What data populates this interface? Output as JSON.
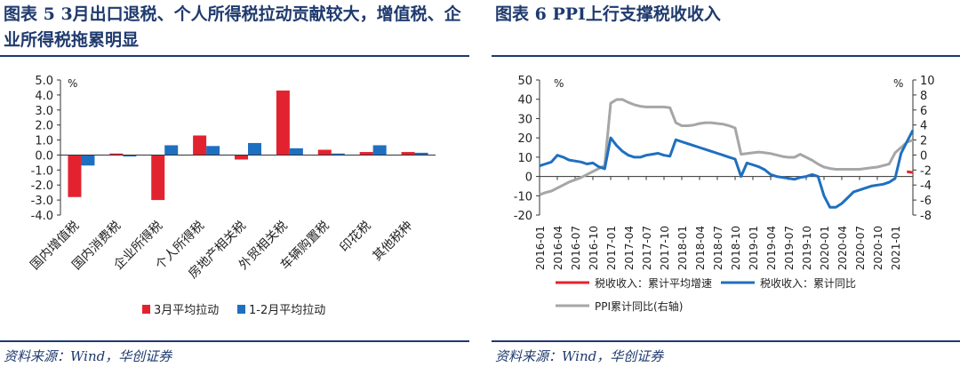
{
  "left": {
    "title": "图表 5  3月出口退税、个人所得税拉动贡献较大，增值税、企业所得税拖累明显",
    "source": "资料来源：Wind，华创证券"
  },
  "right": {
    "title": "图表 6  PPI上行支撑税收收入",
    "source": "资料来源：Wind，华创证券"
  },
  "chart_data": [
    {
      "type": "bar",
      "title": "",
      "unit_label": "%",
      "ylim": [
        -4.0,
        5.0
      ],
      "yticks": [
        "5.0",
        "4.0",
        "3.0",
        "2.0",
        "1.0",
        "0.0",
        "-1.0",
        "-2.0",
        "-3.0",
        "-4.0"
      ],
      "categories": [
        "国内增值税",
        "国内消费税",
        "企业所得税",
        "个人所得税",
        "房地产相关税",
        "外贸相关税",
        "车辆购置税",
        "印花税",
        "其他税种"
      ],
      "series": [
        {
          "name": "3月平均拉动",
          "color": "#e2232f",
          "values": [
            -2.8,
            0.1,
            -3.0,
            1.3,
            -0.3,
            4.3,
            0.35,
            0.2,
            0.2
          ]
        },
        {
          "name": "1-2月平均拉动",
          "color": "#1f6fc0",
          "values": [
            -0.7,
            -0.1,
            0.65,
            0.6,
            0.8,
            0.45,
            0.1,
            0.65,
            0.15
          ]
        }
      ]
    },
    {
      "type": "line",
      "unit_left": "%",
      "unit_right": "%",
      "ylim_left": [
        -20,
        50
      ],
      "ylim_right": [
        -8,
        10
      ],
      "yticks_left": [
        "50",
        "40",
        "30",
        "20",
        "10",
        "0",
        "-10",
        "-20"
      ],
      "yticks_right": [
        "10",
        "8",
        "6",
        "4",
        "2",
        "0",
        "-2",
        "-4",
        "-6",
        "-8"
      ],
      "x_labels": [
        "2016-01",
        "2016-04",
        "2016-07",
        "2016-10",
        "2017-01",
        "2017-04",
        "2017-07",
        "2017-10",
        "2018-01",
        "2018-04",
        "2018-07",
        "2018-10",
        "2019-01",
        "2019-04",
        "2019-07",
        "2019-10",
        "2020-01",
        "2020-04",
        "2020-07",
        "2020-10",
        "2021-01"
      ],
      "series": [
        {
          "name": "税收收入：累计平均增速",
          "axis": "left",
          "color": "#e2232f",
          "points": [
            [
              62,
              2.5
            ],
            [
              63,
              2.0
            ]
          ]
        },
        {
          "name": "税收收入：累计同比",
          "axis": "left",
          "color": "#1f6fc0",
          "points": [
            [
              0,
              5.5
            ],
            [
              1,
              6.5
            ],
            [
              2,
              7.5
            ],
            [
              3,
              11
            ],
            [
              4,
              10
            ],
            [
              5,
              8.5
            ],
            [
              6,
              8
            ],
            [
              7,
              7.5
            ],
            [
              8,
              6.5
            ],
            [
              9,
              7
            ],
            [
              10,
              5
            ],
            [
              11,
              4
            ],
            [
              12,
              20
            ],
            [
              13,
              16
            ],
            [
              14,
              13
            ],
            [
              15,
              11
            ],
            [
              16,
              10
            ],
            [
              17,
              10
            ],
            [
              18,
              11
            ],
            [
              19,
              11.5
            ],
            [
              20,
              12
            ],
            [
              21,
              11
            ],
            [
              22,
              10.5
            ],
            [
              23,
              19
            ],
            [
              24,
              18
            ],
            [
              25,
              17
            ],
            [
              26,
              16
            ],
            [
              27,
              15
            ],
            [
              28,
              14
            ],
            [
              29,
              13
            ],
            [
              30,
              12
            ],
            [
              31,
              11
            ],
            [
              32,
              10
            ],
            [
              33,
              9
            ],
            [
              34,
              0
            ],
            [
              35,
              7
            ],
            [
              36,
              6
            ],
            [
              37,
              5
            ],
            [
              38,
              3.5
            ],
            [
              39,
              1
            ],
            [
              40,
              0
            ],
            [
              41,
              -0.5
            ],
            [
              42,
              -1
            ],
            [
              43,
              -1.5
            ],
            [
              44,
              -0.5
            ],
            [
              45,
              0
            ],
            [
              46,
              1
            ],
            [
              47,
              0
            ],
            [
              48,
              -10
            ],
            [
              49,
              -16
            ],
            [
              50,
              -16
            ],
            [
              51,
              -14
            ],
            [
              52,
              -11
            ],
            [
              53,
              -8
            ],
            [
              54,
              -7
            ],
            [
              55,
              -6
            ],
            [
              56,
              -5
            ],
            [
              57,
              -4.5
            ],
            [
              58,
              -4
            ],
            [
              59,
              -3
            ],
            [
              60,
              -1
            ],
            [
              61,
              12
            ],
            [
              62,
              18
            ],
            [
              63,
              24
            ]
          ]
        },
        {
          "name": "PPI累计同比(右轴)",
          "axis": "right",
          "color": "#a6a6a6",
          "points": [
            [
              0,
              -5.3
            ],
            [
              1,
              -5
            ],
            [
              2,
              -4.8
            ],
            [
              3,
              -4.4
            ],
            [
              4,
              -4
            ],
            [
              5,
              -3.6
            ],
            [
              6,
              -3.3
            ],
            [
              7,
              -3
            ],
            [
              8,
              -2.6
            ],
            [
              9,
              -2.2
            ],
            [
              10,
              -1.8
            ],
            [
              11,
              -1.4
            ],
            [
              12,
              6.9
            ],
            [
              13,
              7.4
            ],
            [
              14,
              7.4
            ],
            [
              15,
              7.0
            ],
            [
              16,
              6.7
            ],
            [
              17,
              6.5
            ],
            [
              18,
              6.4
            ],
            [
              19,
              6.4
            ],
            [
              20,
              6.4
            ],
            [
              21,
              6.4
            ],
            [
              22,
              6.3
            ],
            [
              23,
              4.3
            ],
            [
              24,
              3.9
            ],
            [
              25,
              3.9
            ],
            [
              26,
              4.0
            ],
            [
              27,
              4.2
            ],
            [
              28,
              4.3
            ],
            [
              29,
              4.3
            ],
            [
              30,
              4.2
            ],
            [
              31,
              4.1
            ],
            [
              32,
              3.9
            ],
            [
              33,
              3.6
            ],
            [
              34,
              0.1
            ],
            [
              35,
              0.2
            ],
            [
              36,
              0.3
            ],
            [
              37,
              0.4
            ],
            [
              38,
              0.3
            ],
            [
              39,
              0.2
            ],
            [
              40,
              0
            ],
            [
              41,
              -0.2
            ],
            [
              42,
              -0.3
            ],
            [
              43,
              -0.3
            ],
            [
              44,
              0.1
            ],
            [
              45,
              -0.3
            ],
            [
              46,
              -0.7
            ],
            [
              47,
              -1.2
            ],
            [
              48,
              -1.6
            ],
            [
              49,
              -1.8
            ],
            [
              50,
              -1.9
            ],
            [
              51,
              -1.9
            ],
            [
              52,
              -1.9
            ],
            [
              53,
              -1.9
            ],
            [
              54,
              -1.9
            ],
            [
              55,
              -1.8
            ],
            [
              56,
              -1.7
            ],
            [
              57,
              -1.6
            ],
            [
              58,
              -1.4
            ],
            [
              59,
              -1.2
            ],
            [
              60,
              0.3
            ],
            [
              61,
              1.0
            ],
            [
              62,
              1.7
            ],
            [
              63,
              2.0
            ]
          ]
        }
      ]
    }
  ]
}
